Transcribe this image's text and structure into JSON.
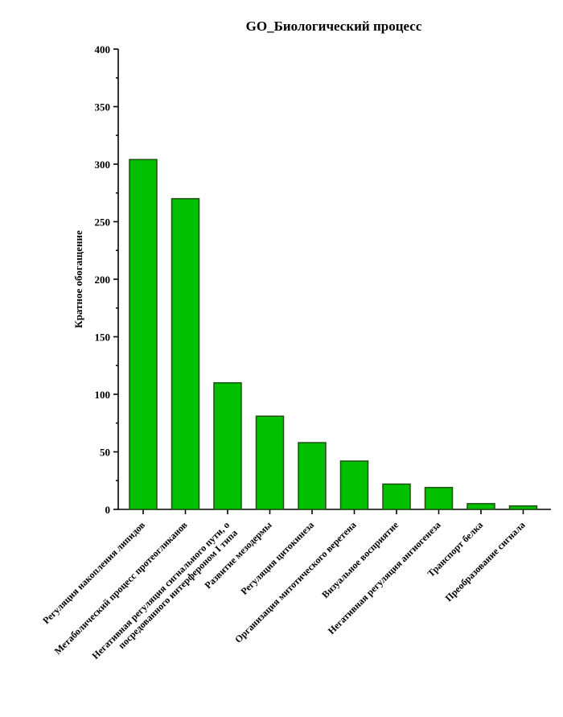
{
  "chart_data": {
    "type": "bar",
    "title": "GO_Биологический процесс",
    "xlabel": "",
    "ylabel": "Кратное обогащение",
    "ylim": [
      0,
      400
    ],
    "yticks": [
      0,
      50,
      100,
      150,
      200,
      250,
      300,
      350,
      400
    ],
    "categories": [
      [
        "Регуляция накопления липидов"
      ],
      [
        "Метаболический процесс протеогликанов"
      ],
      [
        "Негативная регуляция сигнального пути, о",
        "посредованного интерфероном I типа"
      ],
      [
        "Развитие мезодермы"
      ],
      [
        "Регуляция цитокинеза"
      ],
      [
        "Организация митотического веретена"
      ],
      [
        "Визуальное восприятие"
      ],
      [
        "Негативная регуляция ангиогенеза"
      ],
      [
        "Транспорт белка"
      ],
      [
        "Преобразование сигнала"
      ]
    ],
    "values": [
      304,
      270,
      110,
      81,
      58,
      42,
      22,
      19,
      5,
      3
    ],
    "bar_color": "#00c000",
    "grid": false,
    "legend": "none"
  }
}
